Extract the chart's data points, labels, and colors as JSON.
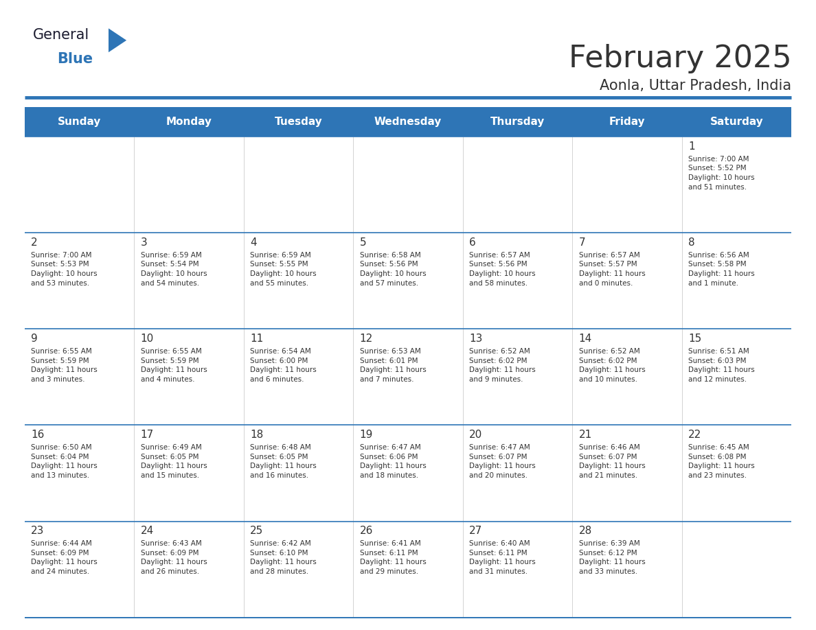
{
  "title": "February 2025",
  "subtitle": "Aonla, Uttar Pradesh, India",
  "days_of_week": [
    "Sunday",
    "Monday",
    "Tuesday",
    "Wednesday",
    "Thursday",
    "Friday",
    "Saturday"
  ],
  "header_bg": "#2E75B6",
  "header_text": "#FFFFFF",
  "cell_bg_white": "#FFFFFF",
  "cell_bg_light": "#F0F0F0",
  "divider_color": "#2E75B6",
  "text_color": "#333333",
  "day_num_color": "#333333",
  "calendar_data": [
    [
      null,
      null,
      null,
      null,
      null,
      null,
      {
        "day": 1,
        "sunrise": "7:00 AM",
        "sunset": "5:52 PM",
        "daylight": "10 hours\nand 51 minutes."
      }
    ],
    [
      {
        "day": 2,
        "sunrise": "7:00 AM",
        "sunset": "5:53 PM",
        "daylight": "10 hours\nand 53 minutes."
      },
      {
        "day": 3,
        "sunrise": "6:59 AM",
        "sunset": "5:54 PM",
        "daylight": "10 hours\nand 54 minutes."
      },
      {
        "day": 4,
        "sunrise": "6:59 AM",
        "sunset": "5:55 PM",
        "daylight": "10 hours\nand 55 minutes."
      },
      {
        "day": 5,
        "sunrise": "6:58 AM",
        "sunset": "5:56 PM",
        "daylight": "10 hours\nand 57 minutes."
      },
      {
        "day": 6,
        "sunrise": "6:57 AM",
        "sunset": "5:56 PM",
        "daylight": "10 hours\nand 58 minutes."
      },
      {
        "day": 7,
        "sunrise": "6:57 AM",
        "sunset": "5:57 PM",
        "daylight": "11 hours\nand 0 minutes."
      },
      {
        "day": 8,
        "sunrise": "6:56 AM",
        "sunset": "5:58 PM",
        "daylight": "11 hours\nand 1 minute."
      }
    ],
    [
      {
        "day": 9,
        "sunrise": "6:55 AM",
        "sunset": "5:59 PM",
        "daylight": "11 hours\nand 3 minutes."
      },
      {
        "day": 10,
        "sunrise": "6:55 AM",
        "sunset": "5:59 PM",
        "daylight": "11 hours\nand 4 minutes."
      },
      {
        "day": 11,
        "sunrise": "6:54 AM",
        "sunset": "6:00 PM",
        "daylight": "11 hours\nand 6 minutes."
      },
      {
        "day": 12,
        "sunrise": "6:53 AM",
        "sunset": "6:01 PM",
        "daylight": "11 hours\nand 7 minutes."
      },
      {
        "day": 13,
        "sunrise": "6:52 AM",
        "sunset": "6:02 PM",
        "daylight": "11 hours\nand 9 minutes."
      },
      {
        "day": 14,
        "sunrise": "6:52 AM",
        "sunset": "6:02 PM",
        "daylight": "11 hours\nand 10 minutes."
      },
      {
        "day": 15,
        "sunrise": "6:51 AM",
        "sunset": "6:03 PM",
        "daylight": "11 hours\nand 12 minutes."
      }
    ],
    [
      {
        "day": 16,
        "sunrise": "6:50 AM",
        "sunset": "6:04 PM",
        "daylight": "11 hours\nand 13 minutes."
      },
      {
        "day": 17,
        "sunrise": "6:49 AM",
        "sunset": "6:05 PM",
        "daylight": "11 hours\nand 15 minutes."
      },
      {
        "day": 18,
        "sunrise": "6:48 AM",
        "sunset": "6:05 PM",
        "daylight": "11 hours\nand 16 minutes."
      },
      {
        "day": 19,
        "sunrise": "6:47 AM",
        "sunset": "6:06 PM",
        "daylight": "11 hours\nand 18 minutes."
      },
      {
        "day": 20,
        "sunrise": "6:47 AM",
        "sunset": "6:07 PM",
        "daylight": "11 hours\nand 20 minutes."
      },
      {
        "day": 21,
        "sunrise": "6:46 AM",
        "sunset": "6:07 PM",
        "daylight": "11 hours\nand 21 minutes."
      },
      {
        "day": 22,
        "sunrise": "6:45 AM",
        "sunset": "6:08 PM",
        "daylight": "11 hours\nand 23 minutes."
      }
    ],
    [
      {
        "day": 23,
        "sunrise": "6:44 AM",
        "sunset": "6:09 PM",
        "daylight": "11 hours\nand 24 minutes."
      },
      {
        "day": 24,
        "sunrise": "6:43 AM",
        "sunset": "6:09 PM",
        "daylight": "11 hours\nand 26 minutes."
      },
      {
        "day": 25,
        "sunrise": "6:42 AM",
        "sunset": "6:10 PM",
        "daylight": "11 hours\nand 28 minutes."
      },
      {
        "day": 26,
        "sunrise": "6:41 AM",
        "sunset": "6:11 PM",
        "daylight": "11 hours\nand 29 minutes."
      },
      {
        "day": 27,
        "sunrise": "6:40 AM",
        "sunset": "6:11 PM",
        "daylight": "11 hours\nand 31 minutes."
      },
      {
        "day": 28,
        "sunrise": "6:39 AM",
        "sunset": "6:12 PM",
        "daylight": "11 hours\nand 33 minutes."
      },
      null
    ]
  ],
  "logo_text_general": "General",
  "logo_text_blue": "Blue",
  "logo_color_general": "#1A1A2E",
  "logo_color_blue": "#2E75B6",
  "logo_triangle_color": "#2E75B6"
}
